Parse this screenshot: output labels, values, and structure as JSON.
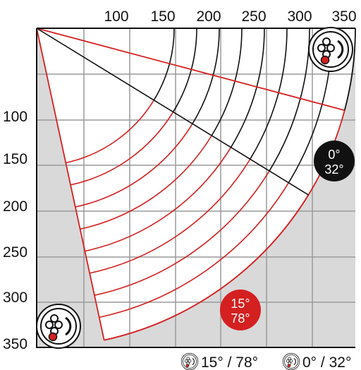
{
  "axes": {
    "x_ticks": [
      "100",
      "150",
      "200",
      "250",
      "300",
      "350"
    ],
    "y_ticks": [
      "100",
      "150",
      "200",
      "250",
      "300",
      "350"
    ]
  },
  "badges": {
    "red": {
      "line1": "15°",
      "line2": "78°"
    },
    "black": {
      "line1": "0°",
      "line2": "32°"
    }
  },
  "legend": {
    "red_item": "15° / 78°",
    "black_item": "0° / 32°"
  },
  "colors": {
    "red": "#d42020",
    "black": "#111111",
    "grid": "#9a9a9a",
    "shade": "#d9d9d9",
    "hinge_dot": "#d42020"
  },
  "icons": {
    "legend_red": "hinge-icon",
    "legend_black": "hinge-icon",
    "corner_top_right": "hinge-icon",
    "corner_bottom_left": "hinge-icon"
  }
}
